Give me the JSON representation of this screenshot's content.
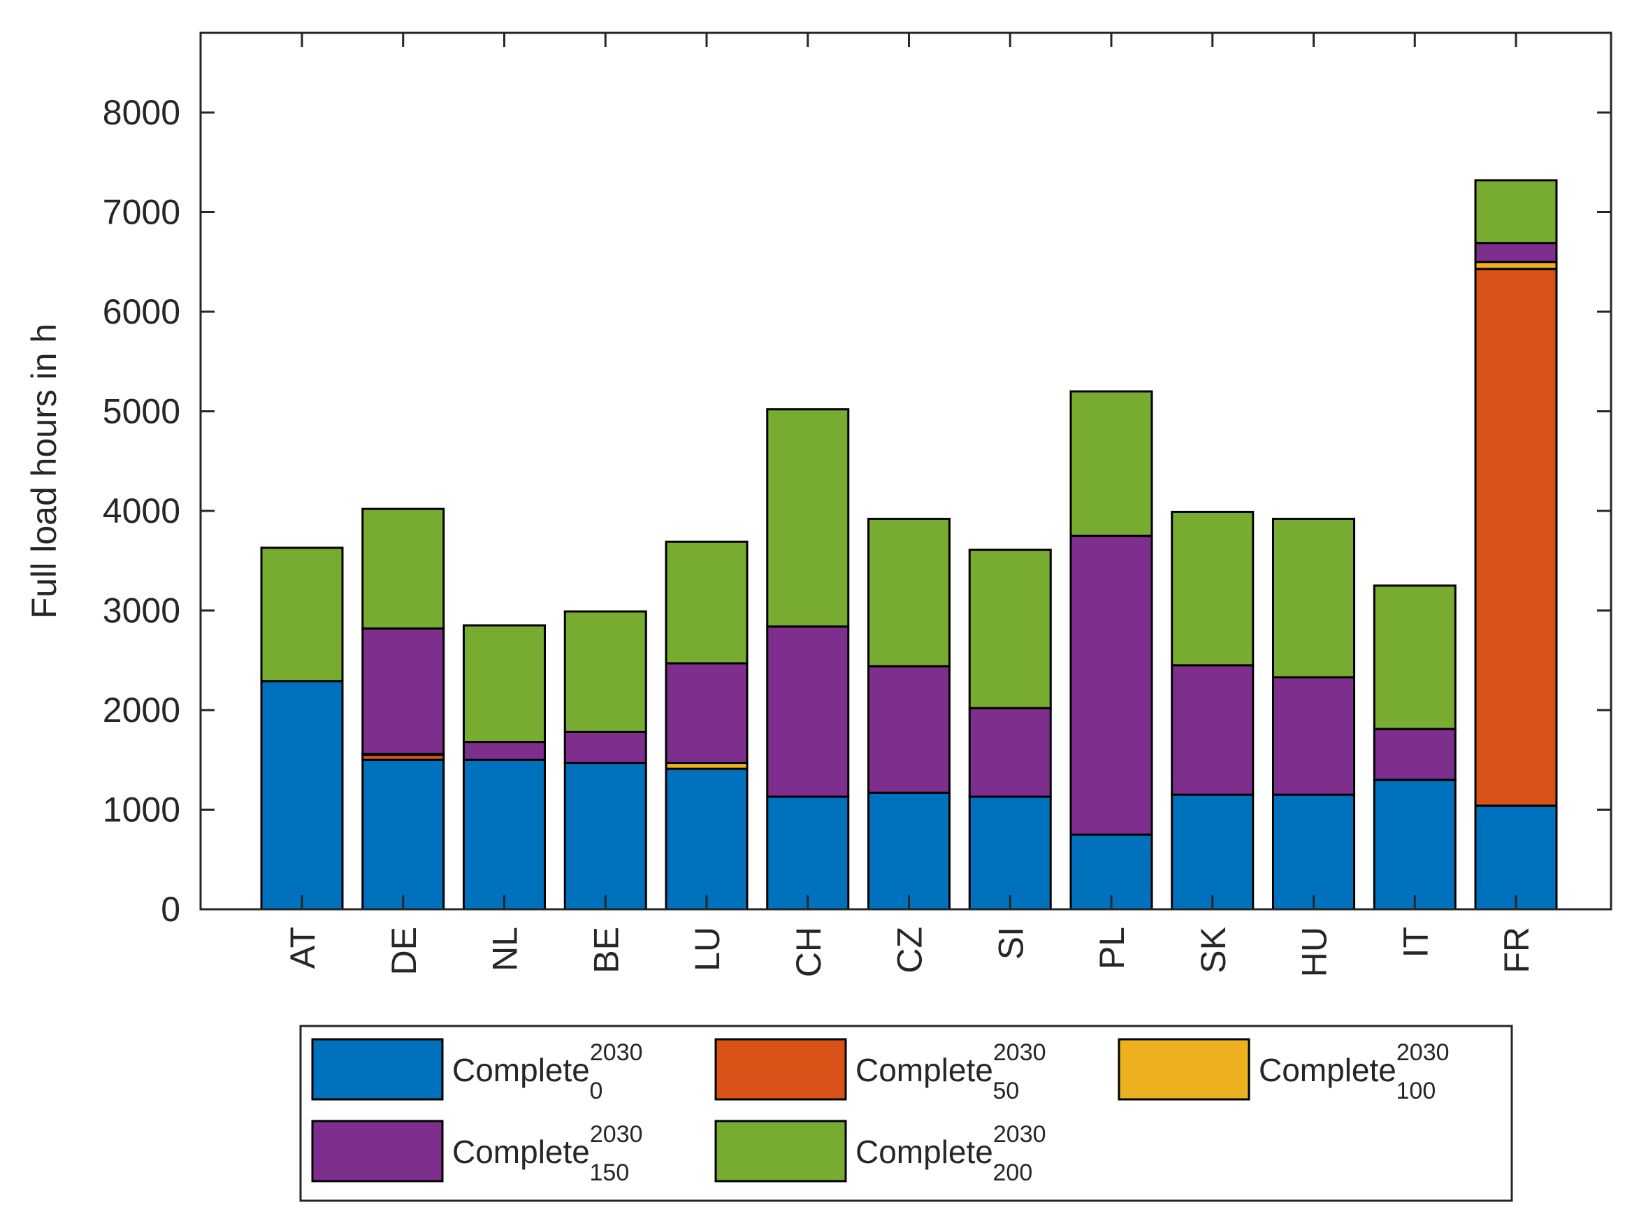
{
  "chart_data": {
    "type": "bar",
    "stacked": true,
    "title": "",
    "xlabel": "",
    "ylabel": "Full load hours in h",
    "ylim": [
      0,
      8800
    ],
    "yticks": [
      0,
      1000,
      2000,
      3000,
      4000,
      5000,
      6000,
      7000,
      8000
    ],
    "grid": false,
    "legend_position": "bottom",
    "categories": [
      "AT",
      "DE",
      "NL",
      "BE",
      "LU",
      "CH",
      "CZ",
      "SI",
      "PL",
      "SK",
      "HU",
      "IT",
      "FR"
    ],
    "series": [
      {
        "name": "Complete",
        "sup": "2030",
        "sub": "0",
        "color": "#0072BD",
        "values": [
          2290,
          1500,
          1500,
          1470,
          1410,
          1130,
          1170,
          1130,
          750,
          1150,
          1150,
          1300,
          1040
        ]
      },
      {
        "name": "Complete",
        "sup": "2030",
        "sub": "50",
        "color": "#D95319",
        "values": [
          0,
          50,
          0,
          0,
          0,
          0,
          0,
          0,
          0,
          0,
          0,
          0,
          5390
        ]
      },
      {
        "name": "Complete",
        "sup": "2030",
        "sub": "100",
        "color": "#EDB120",
        "values": [
          0,
          10,
          0,
          0,
          60,
          0,
          0,
          0,
          0,
          0,
          0,
          0,
          70
        ]
      },
      {
        "name": "Complete",
        "sup": "2030",
        "sub": "150",
        "color": "#7E2F8E",
        "values": [
          0,
          1260,
          180,
          310,
          1000,
          1710,
          1270,
          890,
          3000,
          1300,
          1180,
          510,
          190
        ]
      },
      {
        "name": "Complete",
        "sup": "2030",
        "sub": "200",
        "color": "#77AC30",
        "values": [
          1340,
          1200,
          1170,
          1210,
          1220,
          2180,
          1480,
          1590,
          1450,
          1540,
          1590,
          1440,
          630
        ]
      }
    ]
  }
}
